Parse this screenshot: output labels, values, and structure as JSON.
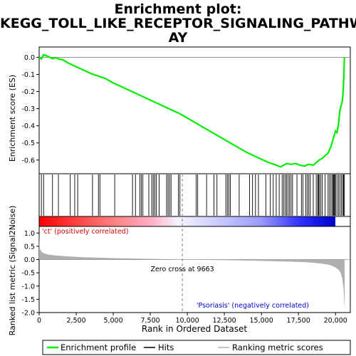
{
  "title_lines": [
    "Enrichment plot:",
    "KEGG_TOLL_LIKE_RECEPTOR_SIGNALING_PATHW",
    "AY"
  ],
  "chart_data": {
    "type": "line",
    "title": "Enrichment plot: KEGG_TOLL_LIKE_RECEPTOR_SIGNALING_PATHWAY",
    "xlabel": "Rank in Ordered Dataset",
    "xlim": [
      0,
      21000
    ],
    "x_ticks": [
      0,
      2500,
      5000,
      7500,
      10000,
      12500,
      15000,
      17500,
      20000
    ],
    "x_tick_labels": [
      "0",
      "2,500",
      "5,000",
      "7,500",
      "10,000",
      "12,500",
      "15,000",
      "17,500",
      "20,000"
    ],
    "es_panel": {
      "ylabel": "Enrichment score (ES)",
      "ylim": [
        -0.68,
        0.06
      ],
      "y_ticks": [
        0.0,
        -0.1,
        -0.2,
        -0.3,
        -0.4,
        -0.5,
        -0.6
      ],
      "y_tick_labels": [
        "0.0",
        "-0.1",
        "-0.2",
        "-0.3",
        "-0.4",
        "-0.5",
        "-0.6"
      ],
      "series": [
        {
          "color": "#00ee00",
          "x": [
            0,
            150,
            300,
            600,
            900,
            1150,
            1300,
            1600,
            2000,
            2500,
            3000,
            3500,
            4000,
            4500,
            5000,
            5500,
            6000,
            6500,
            7000,
            7500,
            8000,
            8500,
            9000,
            9500,
            10000,
            10500,
            11000,
            11500,
            12000,
            12500,
            13000,
            13500,
            14000,
            14500,
            15000,
            15500,
            16000,
            16300,
            16500,
            16700,
            17000,
            17300,
            17600,
            17900,
            18200,
            18500,
            18700,
            18900,
            19100,
            19300,
            19500,
            19700,
            19800,
            19900,
            20000,
            20100,
            20200,
            20300,
            20400,
            20450,
            20500,
            20550,
            20600
          ],
          "y": [
            0.0,
            -0.01,
            0.015,
            0.005,
            -0.008,
            -0.002,
            -0.01,
            -0.015,
            -0.035,
            -0.055,
            -0.075,
            -0.095,
            -0.11,
            -0.125,
            -0.15,
            -0.17,
            -0.19,
            -0.21,
            -0.23,
            -0.25,
            -0.27,
            -0.29,
            -0.31,
            -0.33,
            -0.355,
            -0.38,
            -0.405,
            -0.43,
            -0.455,
            -0.48,
            -0.505,
            -0.53,
            -0.555,
            -0.575,
            -0.595,
            -0.615,
            -0.63,
            -0.64,
            -0.63,
            -0.62,
            -0.625,
            -0.62,
            -0.63,
            -0.635,
            -0.625,
            -0.63,
            -0.615,
            -0.6,
            -0.59,
            -0.575,
            -0.56,
            -0.52,
            -0.49,
            -0.46,
            -0.43,
            -0.44,
            -0.39,
            -0.31,
            -0.275,
            -0.26,
            -0.22,
            -0.15,
            0.0
          ]
        }
      ]
    },
    "hits": [
      150,
      300,
      900,
      1300,
      2100,
      2400,
      2600,
      3600,
      4000,
      4100,
      5100,
      6300,
      6500,
      6800,
      6900,
      7000,
      7400,
      7600,
      7700,
      7800,
      7900,
      8100,
      8600,
      8700,
      8800,
      8900,
      9400,
      9500,
      10600,
      10700,
      11300,
      11800,
      12000,
      12600,
      12700,
      12800,
      12900,
      13500,
      14200,
      14400,
      14600,
      14800,
      15300,
      15600,
      15800,
      16000,
      16200,
      16400,
      16500,
      16600,
      16700,
      16800,
      16900,
      17000,
      17100,
      17400,
      17700,
      17800,
      18000,
      18100,
      18200,
      18300,
      18500,
      18700,
      18800,
      18850,
      18900,
      19000,
      19100,
      19300,
      19500,
      19600,
      19700,
      19800,
      19850,
      19900,
      19950,
      20000,
      20100,
      20200,
      20300,
      20400,
      20500,
      20550,
      20600
    ],
    "metric_panel": {
      "ylabel": "Ranked list metric (Signal2Noise)",
      "ylim": [
        -2.0,
        1.25
      ],
      "y_ticks": [
        1.0,
        0.5,
        0.0,
        -0.5,
        -1.0,
        -1.5,
        -2.0
      ],
      "y_tick_labels": [
        "1.0",
        "0.5",
        "0.0",
        "-0.5",
        "-1.0",
        "-1.5",
        "-2.0"
      ],
      "curve_x": [
        0,
        20,
        60,
        150,
        300,
        600,
        1000,
        2000,
        3000,
        4000,
        5000,
        6000,
        7000,
        8000,
        9000,
        9663,
        10500,
        12000,
        13500,
        15000,
        16000,
        17000,
        18000,
        18500,
        19000,
        19500,
        19800,
        20000,
        20200,
        20350,
        20450,
        20550,
        20620
      ],
      "curve_y": [
        0.95,
        0.55,
        0.4,
        0.3,
        0.24,
        0.19,
        0.16,
        0.12,
        0.09,
        0.07,
        0.055,
        0.04,
        0.03,
        0.02,
        0.008,
        0.0,
        -0.008,
        -0.02,
        -0.035,
        -0.05,
        -0.065,
        -0.08,
        -0.1,
        -0.12,
        -0.15,
        -0.19,
        -0.24,
        -0.3,
        -0.38,
        -0.5,
        -0.7,
        -1.1,
        -1.95
      ],
      "zero_cross_x": 9663,
      "zero_cross_label": "Zero cross at 9663",
      "positive_label": "'ct' (positively correlated)",
      "negative_label": "'Psoriasis' (negatively correlated)"
    },
    "colors": {
      "es_line": "#00ee00",
      "hit": "#000000",
      "metric_fill": "#b0b0b0",
      "zero_line": "#808080",
      "positive_label": "#cc0000",
      "negative_label": "#0000cc",
      "heat_pos": "#ff0000",
      "heat_mid": "#ffffff",
      "heat_neg": "#0000ff"
    },
    "legend": {
      "placement": "bottom",
      "items": [
        {
          "label": "Enrichment profile",
          "color": "#00ee00"
        },
        {
          "label": "Hits",
          "color": "#000000"
        },
        {
          "label": "Ranking metric scores",
          "color": "#b0b0b0"
        }
      ]
    }
  }
}
